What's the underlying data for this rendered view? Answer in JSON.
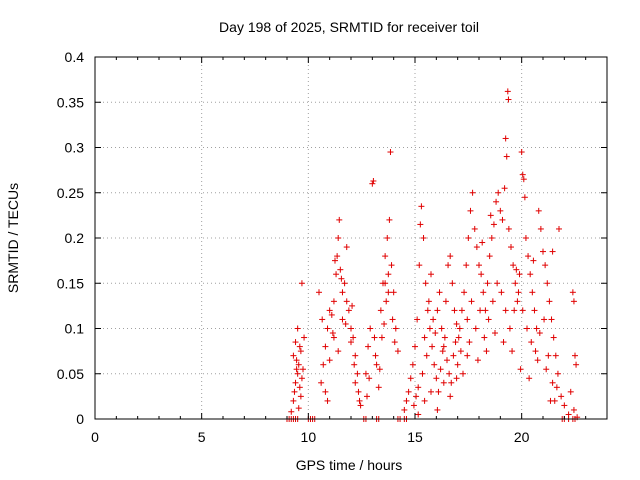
{
  "chart_data": {
    "type": "scatter",
    "title": "Day 198 of 2025, SRMTID for receiver toil",
    "xlabel": "GPS time / hours",
    "ylabel": "SRMTID / TECUs",
    "xlim": [
      0,
      24
    ],
    "ylim": [
      0,
      0.4
    ],
    "x_ticks": [
      0,
      5,
      10,
      15,
      20
    ],
    "y_ticks": [
      0,
      0.05,
      0.1,
      0.15,
      0.2,
      0.25,
      0.3,
      0.35,
      0.4
    ],
    "x_tick_labels": [
      "0",
      "5",
      "10",
      "15",
      "20"
    ],
    "y_tick_labels": [
      "0",
      "0.05",
      "0.1",
      "0.15",
      "0.2",
      "0.25",
      "0.3",
      "0.35",
      "0.4"
    ],
    "grid": true,
    "marker": "+",
    "color": "#e00000",
    "series": [
      {
        "name": "SRMTID",
        "points": [
          [
            9.0,
            0.0
          ],
          [
            9.1,
            0.0
          ],
          [
            9.2,
            0.0
          ],
          [
            9.3,
            0.0
          ],
          [
            9.4,
            0.0
          ],
          [
            9.5,
            0.0
          ],
          [
            10.0,
            0.0
          ],
          [
            10.1,
            0.0
          ],
          [
            10.2,
            0.0
          ],
          [
            10.3,
            0.0
          ],
          [
            12.6,
            0.0
          ],
          [
            12.7,
            0.0
          ],
          [
            13.2,
            0.0
          ],
          [
            13.3,
            0.0
          ],
          [
            14.2,
            0.0
          ],
          [
            14.3,
            0.0
          ],
          [
            14.5,
            0.0
          ],
          [
            14.6,
            0.0
          ],
          [
            21.9,
            0.0
          ],
          [
            22.0,
            0.0
          ],
          [
            22.2,
            0.0
          ],
          [
            22.4,
            0.0
          ],
          [
            22.5,
            0.0
          ],
          [
            9.2,
            0.008
          ],
          [
            9.3,
            0.02
          ],
          [
            9.35,
            0.03
          ],
          [
            9.4,
            0.04
          ],
          [
            9.45,
            0.055
          ],
          [
            9.5,
            0.05
          ],
          [
            9.55,
            0.06
          ],
          [
            9.6,
            0.035
          ],
          [
            9.65,
            0.025
          ],
          [
            9.7,
            0.045
          ],
          [
            9.3,
            0.07
          ],
          [
            9.4,
            0.085
          ],
          [
            9.5,
            0.1
          ],
          [
            9.6,
            0.08
          ],
          [
            9.7,
            0.15
          ],
          [
            9.45,
            0.065
          ],
          [
            9.55,
            0.012
          ],
          [
            9.65,
            0.075
          ],
          [
            9.75,
            0.055
          ],
          [
            9.8,
            0.09
          ],
          [
            10.6,
            0.04
          ],
          [
            10.7,
            0.06
          ],
          [
            10.8,
            0.08
          ],
          [
            10.9,
            0.1
          ],
          [
            11.0,
            0.12
          ],
          [
            11.1,
            0.115
          ],
          [
            11.2,
            0.13
          ],
          [
            11.3,
            0.16
          ],
          [
            11.35,
            0.18
          ],
          [
            11.4,
            0.2
          ],
          [
            11.45,
            0.22
          ],
          [
            11.5,
            0.165
          ],
          [
            11.6,
            0.14
          ],
          [
            11.7,
            0.15
          ],
          [
            11.8,
            0.19
          ],
          [
            11.9,
            0.12
          ],
          [
            12.0,
            0.1
          ],
          [
            12.1,
            0.09
          ],
          [
            12.2,
            0.07
          ],
          [
            12.3,
            0.05
          ],
          [
            10.8,
            0.03
          ],
          [
            10.9,
            0.02
          ],
          [
            11.0,
            0.065
          ],
          [
            11.2,
            0.09
          ],
          [
            11.4,
            0.075
          ],
          [
            11.6,
            0.11
          ],
          [
            11.8,
            0.13
          ],
          [
            12.0,
            0.085
          ],
          [
            12.2,
            0.04
          ],
          [
            12.4,
            0.02
          ],
          [
            10.5,
            0.14
          ],
          [
            10.65,
            0.11
          ],
          [
            11.25,
            0.175
          ],
          [
            11.55,
            0.155
          ],
          [
            11.75,
            0.105
          ],
          [
            12.05,
            0.125
          ],
          [
            12.15,
            0.06
          ],
          [
            12.35,
            0.03
          ],
          [
            12.45,
            0.015
          ],
          [
            11.15,
            0.095
          ],
          [
            12.7,
            0.05
          ],
          [
            12.8,
            0.08
          ],
          [
            12.9,
            0.1
          ],
          [
            13.0,
            0.26
          ],
          [
            13.05,
            0.263
          ],
          [
            13.1,
            0.09
          ],
          [
            13.2,
            0.06
          ],
          [
            13.3,
            0.035
          ],
          [
            13.4,
            0.12
          ],
          [
            13.5,
            0.15
          ],
          [
            13.6,
            0.18
          ],
          [
            13.7,
            0.2
          ],
          [
            13.8,
            0.22
          ],
          [
            13.85,
            0.295
          ],
          [
            13.9,
            0.17
          ],
          [
            14.0,
            0.14
          ],
          [
            14.1,
            0.1
          ],
          [
            14.2,
            0.075
          ],
          [
            13.45,
            0.09
          ],
          [
            13.65,
            0.13
          ],
          [
            13.75,
            0.16
          ],
          [
            13.95,
            0.11
          ],
          [
            12.85,
            0.045
          ],
          [
            13.15,
            0.07
          ],
          [
            13.55,
            0.105
          ],
          [
            14.05,
            0.085
          ],
          [
            12.75,
            0.025
          ],
          [
            13.35,
            0.055
          ],
          [
            13.75,
            0.14
          ],
          [
            13.6,
            0.15
          ],
          [
            14.5,
            0.01
          ],
          [
            14.6,
            0.02
          ],
          [
            14.7,
            0.03
          ],
          [
            14.8,
            0.045
          ],
          [
            14.9,
            0.06
          ],
          [
            15.0,
            0.08
          ],
          [
            15.1,
            0.11
          ],
          [
            15.2,
            0.17
          ],
          [
            15.25,
            0.215
          ],
          [
            15.3,
            0.235
          ],
          [
            15.4,
            0.2
          ],
          [
            15.5,
            0.15
          ],
          [
            15.6,
            0.12
          ],
          [
            15.7,
            0.1
          ],
          [
            15.8,
            0.08
          ],
          [
            15.9,
            0.06
          ],
          [
            16.0,
            0.045
          ],
          [
            16.1,
            0.03
          ],
          [
            16.2,
            0.055
          ],
          [
            16.3,
            0.075
          ],
          [
            16.4,
            0.09
          ],
          [
            16.5,
            0.065
          ],
          [
            16.6,
            0.05
          ],
          [
            16.7,
            0.04
          ],
          [
            16.8,
            0.07
          ],
          [
            16.9,
            0.085
          ],
          [
            17.0,
            0.06
          ],
          [
            17.1,
            0.1
          ],
          [
            17.2,
            0.12
          ],
          [
            17.3,
            0.14
          ],
          [
            15.05,
            0.025
          ],
          [
            15.15,
            0.035
          ],
          [
            15.35,
            0.05
          ],
          [
            15.45,
            0.09
          ],
          [
            15.55,
            0.07
          ],
          [
            15.65,
            0.13
          ],
          [
            15.75,
            0.16
          ],
          [
            15.85,
            0.11
          ],
          [
            15.95,
            0.095
          ],
          [
            16.05,
            0.12
          ],
          [
            16.15,
            0.14
          ],
          [
            16.25,
            0.1
          ],
          [
            16.35,
            0.08
          ],
          [
            16.45,
            0.13
          ],
          [
            16.55,
            0.17
          ],
          [
            16.65,
            0.18
          ],
          [
            16.75,
            0.15
          ],
          [
            16.85,
            0.12
          ],
          [
            16.95,
            0.105
          ],
          [
            17.05,
            0.09
          ],
          [
            14.95,
            0.015
          ],
          [
            15.15,
            0.005
          ],
          [
            15.45,
            0.02
          ],
          [
            15.75,
            0.03
          ],
          [
            16.05,
            0.01
          ],
          [
            16.35,
            0.04
          ],
          [
            16.65,
            0.025
          ],
          [
            16.95,
            0.045
          ],
          [
            17.25,
            0.05
          ],
          [
            17.45,
            0.07
          ],
          [
            17.4,
            0.17
          ],
          [
            17.5,
            0.2
          ],
          [
            17.6,
            0.23
          ],
          [
            17.7,
            0.25
          ],
          [
            17.8,
            0.21
          ],
          [
            17.9,
            0.19
          ],
          [
            18.0,
            0.17
          ],
          [
            18.1,
            0.16
          ],
          [
            18.2,
            0.14
          ],
          [
            18.3,
            0.12
          ],
          [
            18.4,
            0.15
          ],
          [
            18.5,
            0.18
          ],
          [
            18.6,
            0.2
          ],
          [
            18.7,
            0.215
          ],
          [
            18.8,
            0.24
          ],
          [
            18.9,
            0.25
          ],
          [
            19.0,
            0.23
          ],
          [
            19.1,
            0.22
          ],
          [
            19.2,
            0.255
          ],
          [
            19.25,
            0.31
          ],
          [
            19.3,
            0.29
          ],
          [
            19.35,
            0.362
          ],
          [
            19.38,
            0.353
          ],
          [
            19.4,
            0.21
          ],
          [
            19.5,
            0.19
          ],
          [
            19.6,
            0.17
          ],
          [
            19.7,
            0.15
          ],
          [
            19.8,
            0.13
          ],
          [
            19.9,
            0.16
          ],
          [
            20.0,
            0.295
          ],
          [
            20.05,
            0.27
          ],
          [
            20.1,
            0.265
          ],
          [
            20.15,
            0.245
          ],
          [
            20.2,
            0.2
          ],
          [
            20.3,
            0.18
          ],
          [
            20.4,
            0.16
          ],
          [
            20.5,
            0.14
          ],
          [
            20.6,
            0.12
          ],
          [
            20.7,
            0.1
          ],
          [
            20.8,
            0.23
          ],
          [
            20.9,
            0.21
          ],
          [
            21.0,
            0.185
          ],
          [
            21.1,
            0.17
          ],
          [
            21.2,
            0.15
          ],
          [
            21.3,
            0.13
          ],
          [
            21.4,
            0.11
          ],
          [
            21.5,
            0.09
          ],
          [
            21.6,
            0.07
          ],
          [
            21.7,
            0.05
          ],
          [
            21.75,
            0.21
          ],
          [
            17.45,
            0.11
          ],
          [
            17.65,
            0.13
          ],
          [
            17.85,
            0.1
          ],
          [
            18.05,
            0.12
          ],
          [
            18.25,
            0.09
          ],
          [
            18.45,
            0.11
          ],
          [
            18.65,
            0.13
          ],
          [
            18.85,
            0.15
          ],
          [
            19.05,
            0.14
          ],
          [
            19.25,
            0.12
          ],
          [
            19.45,
            0.1
          ],
          [
            19.65,
            0.12
          ],
          [
            19.85,
            0.14
          ],
          [
            20.05,
            0.12
          ],
          [
            20.25,
            0.1
          ],
          [
            20.45,
            0.085
          ],
          [
            20.65,
            0.075
          ],
          [
            20.85,
            0.095
          ],
          [
            21.05,
            0.11
          ],
          [
            21.25,
            0.07
          ],
          [
            21.45,
            0.04
          ],
          [
            21.55,
            0.02
          ],
          [
            21.65,
            0.035
          ],
          [
            21.85,
            0.025
          ],
          [
            22.0,
            0.015
          ],
          [
            22.2,
            0.005
          ],
          [
            22.4,
            0.14
          ],
          [
            22.45,
            0.13
          ],
          [
            22.5,
            0.07
          ],
          [
            22.55,
            0.06
          ],
          [
            22.3,
            0.03
          ],
          [
            22.45,
            0.01
          ],
          [
            22.6,
            0.002
          ],
          [
            21.35,
            0.02
          ],
          [
            21.15,
            0.055
          ],
          [
            20.75,
            0.065
          ],
          [
            20.35,
            0.045
          ],
          [
            19.95,
            0.055
          ],
          [
            19.55,
            0.075
          ],
          [
            19.15,
            0.085
          ],
          [
            18.75,
            0.095
          ],
          [
            18.35,
            0.075
          ],
          [
            17.95,
            0.065
          ],
          [
            17.55,
            0.085
          ],
          [
            17.15,
            0.075
          ],
          [
            18.15,
            0.195
          ],
          [
            18.55,
            0.225
          ],
          [
            19.75,
            0.165
          ],
          [
            20.55,
            0.175
          ],
          [
            21.45,
            0.185
          ]
        ]
      }
    ]
  }
}
